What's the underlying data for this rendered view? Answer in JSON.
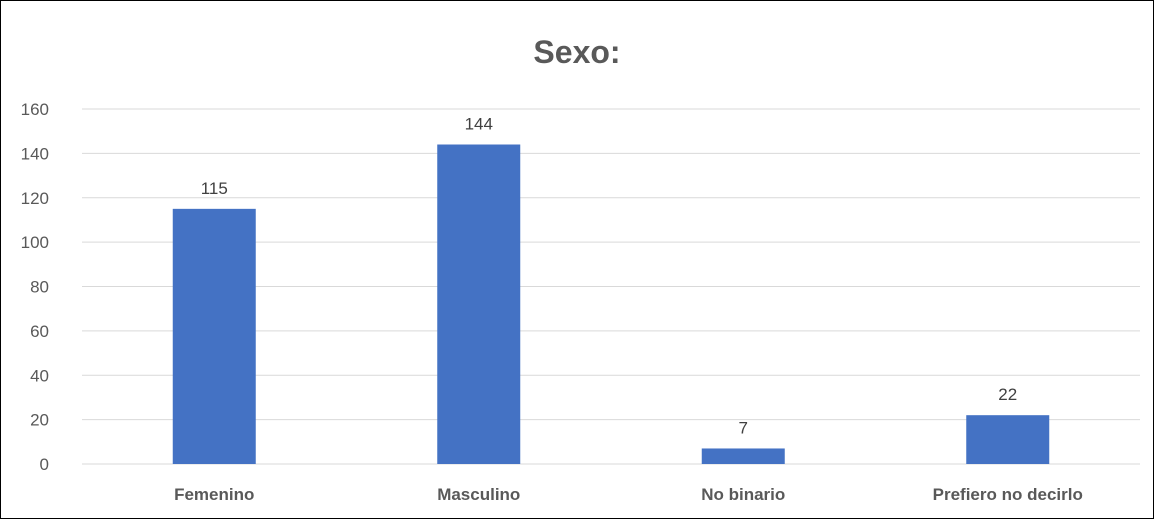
{
  "chart_data": {
    "type": "bar",
    "title": "Sexo:",
    "categories": [
      "Femenino",
      "Masculino",
      "No binario",
      "Prefiero no decirlo"
    ],
    "values": [
      115,
      144,
      7,
      22
    ],
    "data_labels": [
      "115",
      "144",
      "7",
      "22"
    ],
    "xlabel": "",
    "ylabel": "",
    "ylim": [
      0,
      160
    ],
    "yticks": [
      0,
      20,
      40,
      60,
      80,
      100,
      120,
      140,
      160
    ],
    "ytick_labels": [
      "0",
      "20",
      "40",
      "60",
      "80",
      "100",
      "120",
      "140",
      "160"
    ],
    "grid": true,
    "legend": "none",
    "bar_color": "#4472C4",
    "grid_color": "#D9D9D9",
    "text_color": "#595959"
  }
}
